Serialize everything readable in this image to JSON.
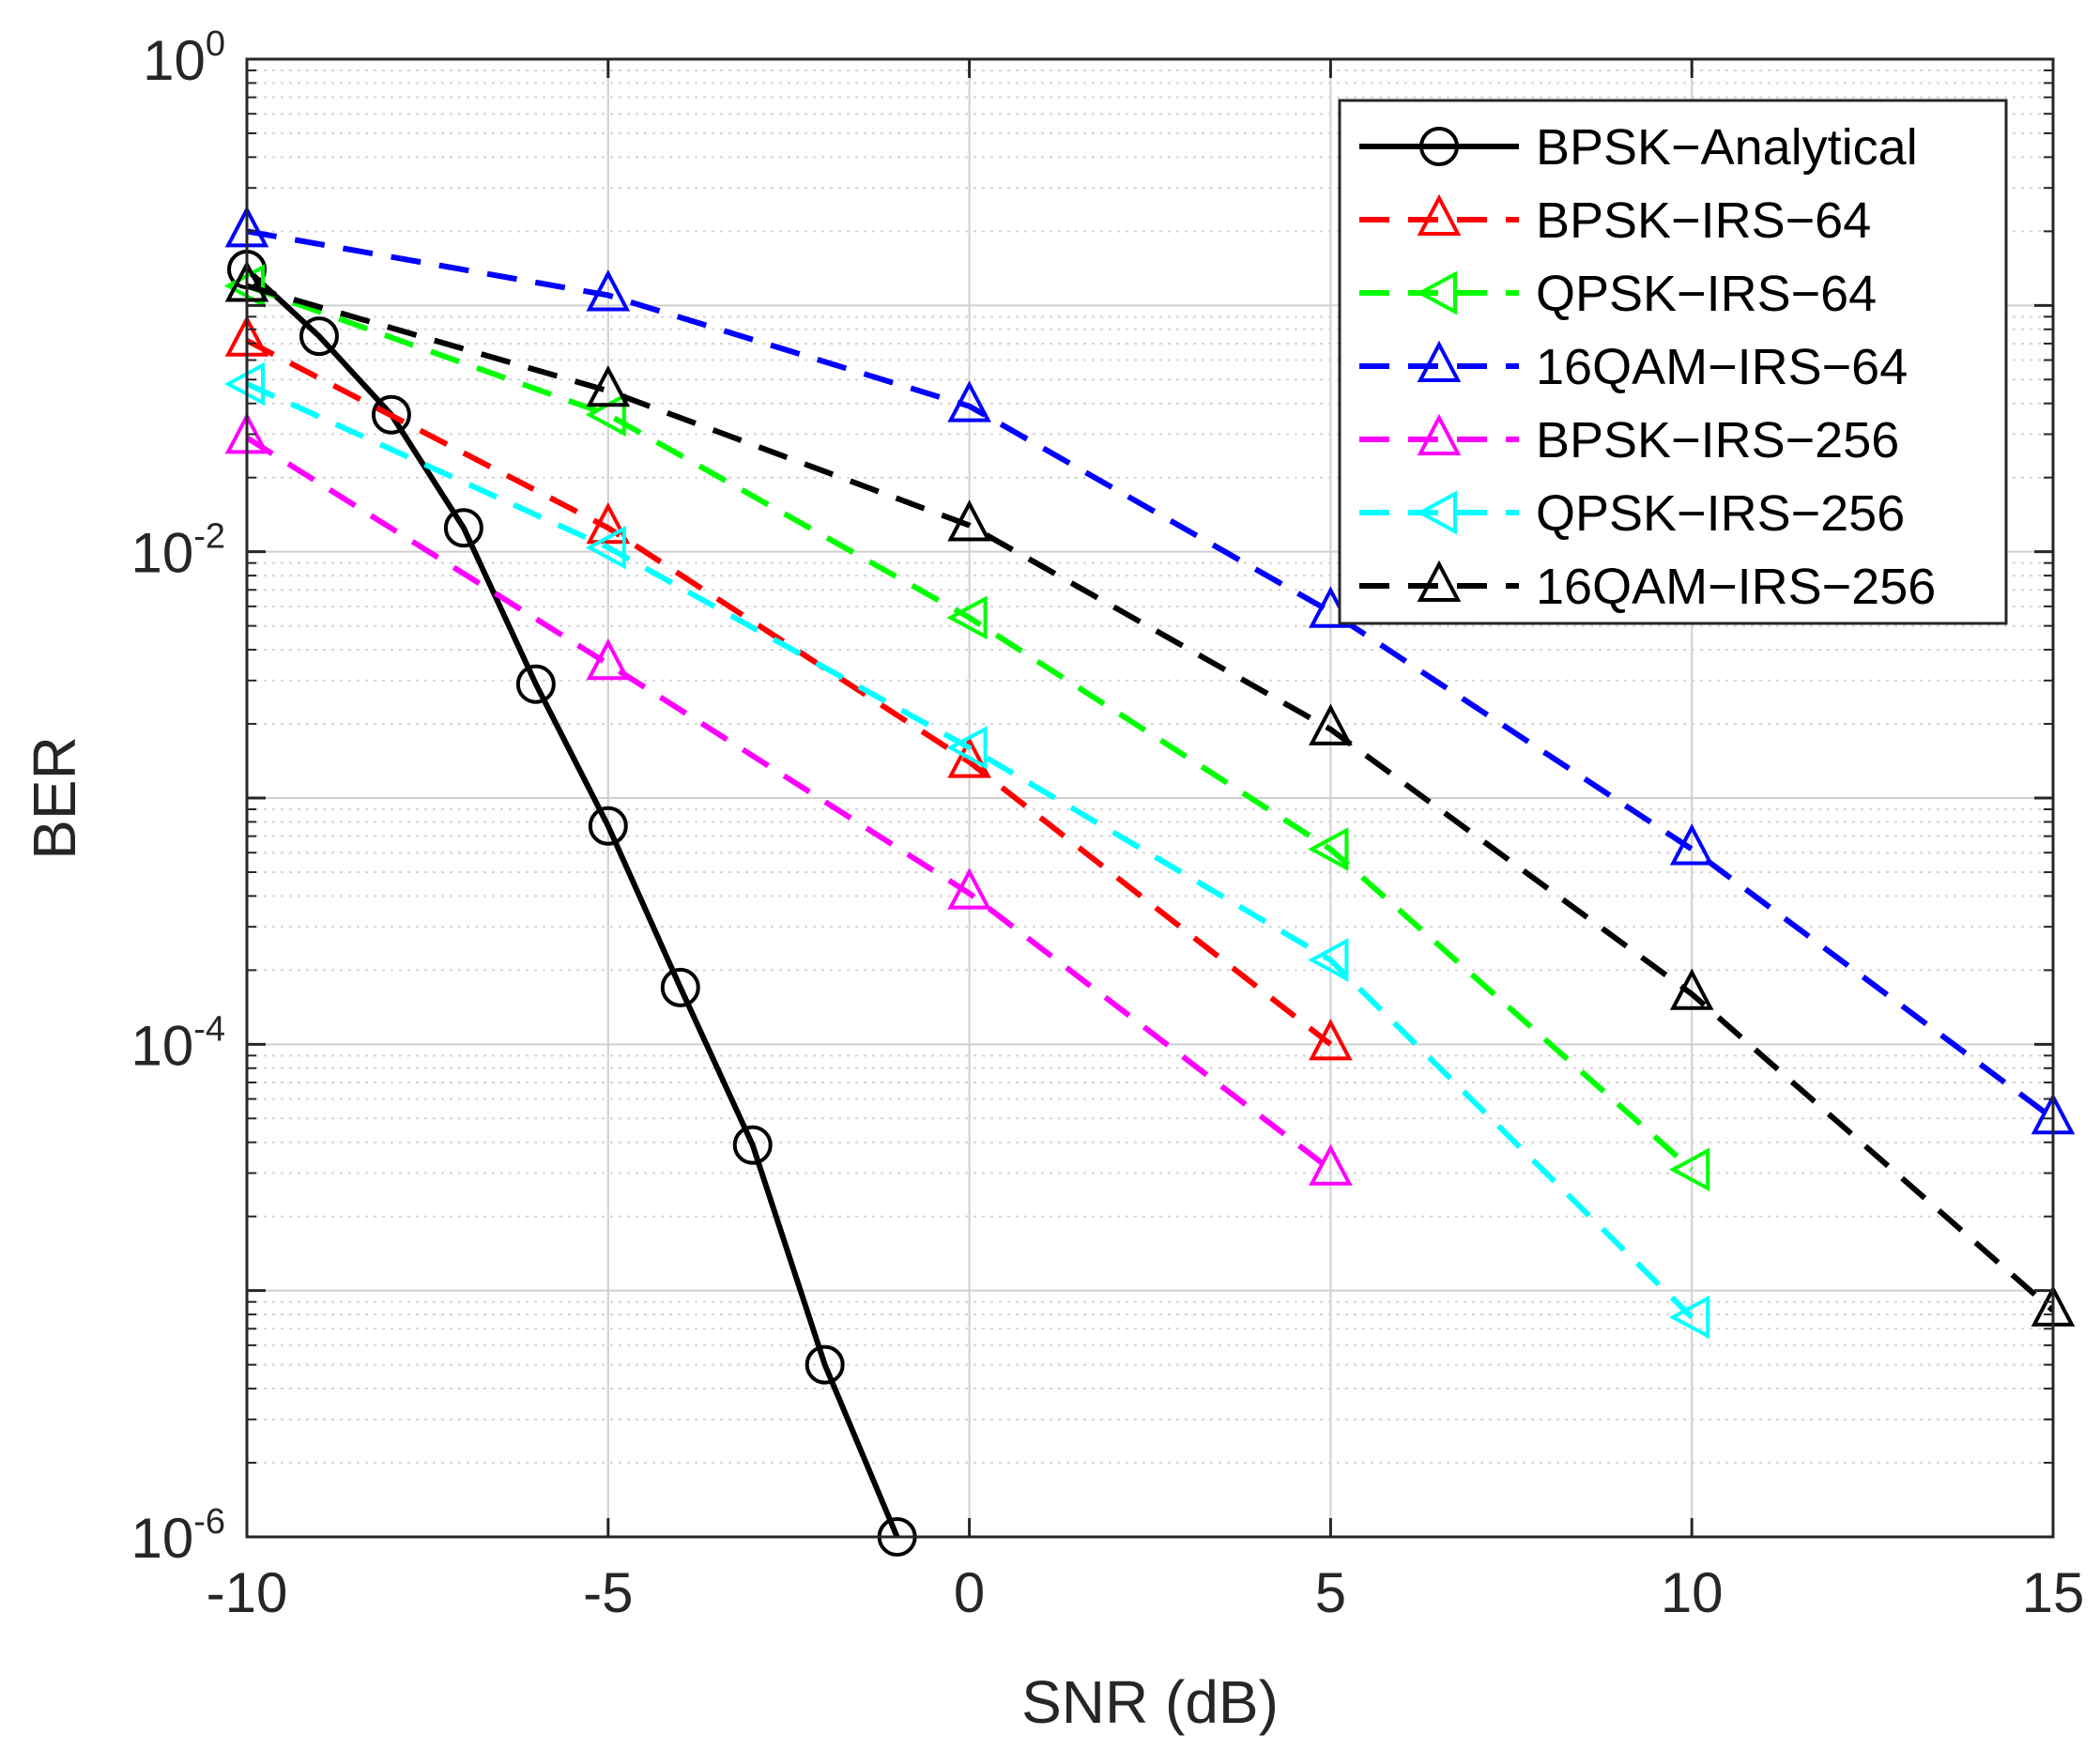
{
  "chart_data": {
    "type": "line",
    "xlabel": "SNR (dB)",
    "ylabel": "BER",
    "yscale": "log",
    "xlim": [
      -10,
      15
    ],
    "ylim": [
      1e-06,
      1
    ],
    "grid": true,
    "minor_grid": true,
    "legend_position": "top-right",
    "xticks": [
      -10,
      -5,
      0,
      5,
      10,
      15
    ],
    "xtick_labels": [
      "-10",
      "-5",
      "0",
      "5",
      "10",
      "15"
    ],
    "yticks": [
      {
        "value": 1,
        "base": "10",
        "exp": "0"
      },
      {
        "value": 0.01,
        "base": "10",
        "exp": "-2"
      },
      {
        "value": 0.0001,
        "base": "10",
        "exp": "-4"
      },
      {
        "value": 1e-06,
        "base": "10",
        "exp": "-6"
      }
    ],
    "series": [
      {
        "name": "BPSK−Analytical",
        "color": "#000000",
        "dash": "solid",
        "marker": "circle",
        "x": [
          -10,
          -9,
          -8,
          -7,
          -6,
          -5,
          -4,
          -3,
          -2,
          -1
        ],
        "y": [
          0.14,
          0.075,
          0.036,
          0.0125,
          0.0029,
          0.00077,
          0.00017,
          3.9e-05,
          5e-06,
          1e-06
        ]
      },
      {
        "name": "BPSK−IRS−64",
        "color": "#ff0000",
        "dash": "dashed",
        "marker": "triangle-up",
        "x": [
          -10,
          -5,
          0,
          5
        ],
        "y": [
          0.072,
          0.0125,
          0.0014,
          0.0001
        ]
      },
      {
        "name": "QPSK−IRS−64",
        "color": "#00ff00",
        "dash": "dashed",
        "marker": "triangle-left",
        "x": [
          -10,
          -5,
          0,
          5,
          10
        ],
        "y": [
          0.12,
          0.036,
          0.0054,
          0.00062,
          3.1e-05
        ]
      },
      {
        "name": "16QAM−IRS−64",
        "color": "#0000ff",
        "dash": "dashed",
        "marker": "triangle-up",
        "x": [
          -10,
          -5,
          0,
          5,
          10,
          15
        ],
        "y": [
          0.2,
          0.11,
          0.039,
          0.0057,
          0.00062,
          5e-05
        ]
      },
      {
        "name": "BPSK−IRS−256",
        "color": "#ff00ff",
        "dash": "dashed",
        "marker": "triangle-up",
        "x": [
          -10,
          -5,
          0,
          5
        ],
        "y": [
          0.029,
          0.0035,
          0.00041,
          3.1e-05
        ]
      },
      {
        "name": "QPSK−IRS−256",
        "color": "#00ffff",
        "dash": "dashed",
        "marker": "triangle-left",
        "x": [
          -10,
          -5,
          0,
          5,
          10
        ],
        "y": [
          0.048,
          0.0104,
          0.0016,
          0.00022,
          7.8e-06
        ]
      },
      {
        "name": "16QAM−IRS−256",
        "color": "#000000",
        "dash": "dashed",
        "marker": "triangle-up",
        "x": [
          -10,
          -5,
          0,
          5,
          10,
          15
        ],
        "y": [
          0.12,
          0.045,
          0.0128,
          0.0019,
          0.00016,
          8.3e-06
        ]
      }
    ]
  }
}
